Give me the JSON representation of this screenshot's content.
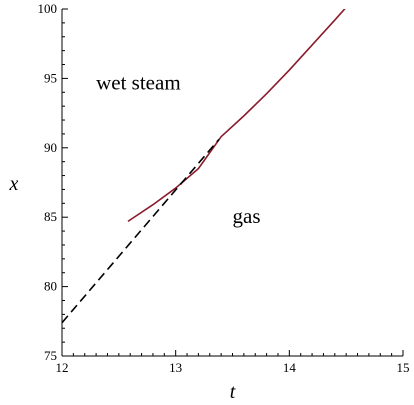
{
  "chart_data": {
    "type": "line",
    "xlabel": "t",
    "ylabel": "x",
    "xlim": [
      12,
      15
    ],
    "ylim": [
      75,
      100
    ],
    "x_ticks": [
      "12",
      "13",
      "14",
      "15"
    ],
    "y_ticks": [
      "75",
      "80",
      "85",
      "90",
      "95",
      "100"
    ],
    "grid": false,
    "legend": "none",
    "annotations": [
      {
        "text": "wet steam",
        "x": 12.3,
        "y": 94.2
      },
      {
        "text": "gas",
        "x": 13.5,
        "y": 84.6
      }
    ],
    "series": [
      {
        "style": "solid",
        "color": "#8b1a2b",
        "x": [
          12.58,
          12.8,
          13.0,
          13.2,
          13.4,
          13.6,
          13.8,
          14.0,
          14.2,
          14.4,
          14.53
        ],
        "y": [
          84.7,
          85.9,
          87.1,
          88.5,
          90.8,
          92.3,
          93.9,
          95.6,
          97.4,
          99.2,
          100.4
        ]
      },
      {
        "style": "dashed",
        "color": "#000000",
        "x": [
          12.0,
          13.38
        ],
        "y": [
          77.4,
          90.6
        ]
      }
    ]
  }
}
